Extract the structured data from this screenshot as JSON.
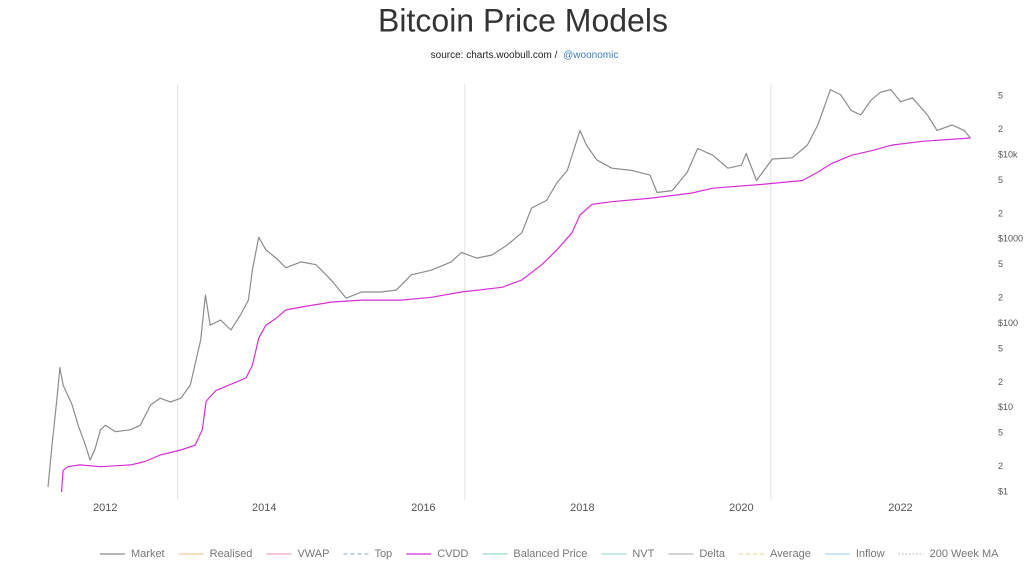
{
  "chart_data": {
    "type": "line",
    "title": "Bitcoin Price Models",
    "subtitle": "source: charts.woobull.com /",
    "subtitle_link": "@woonomic",
    "log_scale": true,
    "xlim": [
      2011.28,
      2022.95
    ],
    "ylim": [
      1,
      70000
    ],
    "xticks": [
      2012,
      2014,
      2016,
      2018,
      2020,
      2022
    ],
    "yticks": [
      {
        "value": 1,
        "label": "$1"
      },
      2,
      5,
      {
        "value": 10,
        "label": "$10"
      },
      {
        "value": 20,
        "label": "2"
      },
      {
        "value": 50,
        "label": "5"
      },
      {
        "value": 100,
        "label": "$100"
      },
      {
        "value": 200,
        "label": "2"
      },
      {
        "value": 500,
        "label": "5"
      },
      {
        "value": 1000,
        "label": "$1000"
      },
      {
        "value": 2000,
        "label": "2"
      },
      {
        "value": 5000,
        "label": "5"
      },
      {
        "value": 10000,
        "label": "$10k"
      },
      {
        "value": 20000,
        "label": "2"
      },
      {
        "value": 50000,
        "label": "5"
      }
    ],
    "vlines": [
      2012.91,
      2016.52,
      2020.37
    ],
    "series": [
      {
        "name": "Market",
        "color": "#8c8c8c",
        "x": [
          2011.28,
          2011.33,
          2011.39,
          2011.43,
          2011.47,
          2011.53,
          2011.58,
          2011.66,
          2011.75,
          2011.81,
          2011.87,
          2011.94,
          2012.0,
          2012.13,
          2012.32,
          2012.44,
          2012.57,
          2012.69,
          2012.82,
          2012.95,
          2013.07,
          2013.2,
          2013.26,
          2013.32,
          2013.45,
          2013.58,
          2013.7,
          2013.8,
          2013.85,
          2013.93,
          2014.02,
          2014.15,
          2014.27,
          2014.46,
          2014.65,
          2014.84,
          2015.03,
          2015.22,
          2015.47,
          2015.66,
          2015.85,
          2016.1,
          2016.35,
          2016.48,
          2016.67,
          2016.86,
          2017.05,
          2017.24,
          2017.36,
          2017.55,
          2017.68,
          2017.81,
          2017.97,
          2018.05,
          2018.18,
          2018.37,
          2018.62,
          2018.85,
          2018.94,
          2019.13,
          2019.32,
          2019.45,
          2019.64,
          2019.83,
          2020.0,
          2020.06,
          2020.19,
          2020.39,
          2020.64,
          2020.83,
          2020.96,
          2021.12,
          2021.25,
          2021.38,
          2021.5,
          2021.63,
          2021.75,
          2021.88,
          2022.0,
          2022.15,
          2022.34,
          2022.46,
          2022.65,
          2022.8,
          2022.88
        ],
        "values": [
          1.15,
          3.6,
          12,
          30,
          18.6,
          14,
          11,
          6.2,
          3.6,
          2.4,
          3.2,
          5.5,
          6.2,
          5.2,
          5.5,
          6.2,
          10.8,
          13,
          11.7,
          13,
          18.6,
          64,
          218,
          96,
          110,
          84,
          126,
          190,
          433,
          1060,
          750,
          600,
          460,
          540,
          500,
          330,
          200,
          237,
          237,
          250,
          380,
          430,
          540,
          700,
          600,
          650,
          850,
          1200,
          2350,
          2900,
          4700,
          6600,
          19700,
          13200,
          8800,
          7000,
          6600,
          5800,
          3600,
          3800,
          6300,
          12000,
          10000,
          7000,
          7600,
          10500,
          5000,
          9000,
          9300,
          13200,
          22800,
          60000,
          52000,
          34000,
          30000,
          45000,
          56000,
          60000,
          43000,
          48000,
          30000,
          19700,
          22800,
          19700,
          16000
        ]
      },
      {
        "name": "CVDD",
        "color": "#d62fd6",
        "x": [
          2011.45,
          2011.47,
          2011.53,
          2011.68,
          2011.94,
          2012.32,
          2012.5,
          2012.69,
          2012.95,
          2013.13,
          2013.22,
          2013.27,
          2013.39,
          2013.77,
          2013.85,
          2013.93,
          2014.02,
          2014.15,
          2014.27,
          2014.46,
          2014.84,
          2015.22,
          2015.72,
          2016.1,
          2016.48,
          2016.99,
          2017.24,
          2017.49,
          2017.68,
          2017.87,
          2017.97,
          2018.12,
          2018.37,
          2018.88,
          2019.38,
          2019.64,
          2020.26,
          2020.77,
          2020.96,
          2021.14,
          2021.39,
          2021.65,
          2021.9,
          2022.28,
          2022.88
        ],
        "values": [
          1.0,
          1.8,
          2.0,
          2.1,
          2.0,
          2.1,
          2.3,
          2.75,
          3.15,
          3.6,
          5.5,
          12,
          16,
          22.6,
          32,
          67,
          96,
          116,
          145,
          157,
          180,
          190,
          190,
          205,
          237,
          270,
          330,
          500,
          750,
          1200,
          1950,
          2600,
          2800,
          3100,
          3550,
          4050,
          4500,
          5000,
          6300,
          8000,
          10000,
          11400,
          13200,
          14600,
          16000
        ]
      }
    ],
    "legend_only": [
      {
        "name": "Realised",
        "color": "#f5c9a0",
        "dash": "solid"
      },
      {
        "name": "VWAP",
        "color": "#f0a8c8",
        "dash": "solid"
      },
      {
        "name": "Top",
        "color": "#a8b4c0",
        "dash": "dashed"
      },
      {
        "name": "Balanced Price",
        "color": "#9fd6c8",
        "dash": "solid"
      },
      {
        "name": "NVT",
        "color": "#a8dcd4",
        "dash": "solid"
      },
      {
        "name": "Delta",
        "color": "#b8b8b8",
        "dash": "solid"
      },
      {
        "name": "Average",
        "color": "#f0e08c",
        "dash": "dashed"
      },
      {
        "name": "Inflow",
        "color": "#a8d4e8",
        "dash": "solid"
      },
      {
        "name": "200 Week MA",
        "color": "#c0c0c0",
        "dash": "dotted"
      }
    ],
    "legend_order": [
      "Market",
      "Realised",
      "VWAP",
      "Top",
      "CVDD",
      "Balanced Price",
      "NVT",
      "Delta",
      "Average",
      "Inflow",
      "200 Week MA"
    ]
  }
}
